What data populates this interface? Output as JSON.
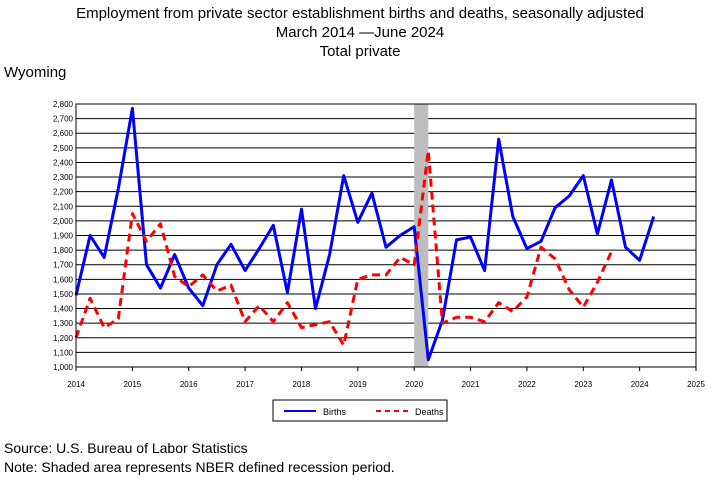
{
  "header": {
    "title": "Employment from private sector establishment births and deaths, seasonally adjusted",
    "period": "March 2014 —June 2024",
    "series_group": "Total private"
  },
  "region": "Wyoming",
  "footer": {
    "source": "Source: U.S. Bureau of Labor Statistics",
    "note": "Note: Shaded area represents NBER defined recession period."
  },
  "chart_data": {
    "type": "line",
    "xlim": [
      2014,
      2025
    ],
    "ylim": [
      1000,
      2800
    ],
    "xticks": [
      "2014",
      "2015",
      "2016",
      "2017",
      "2018",
      "2019",
      "2020",
      "2021",
      "2022",
      "2023",
      "2024",
      "2025"
    ],
    "yticks": [
      "1,000",
      "1,100",
      "1,200",
      "1,300",
      "1,400",
      "1,500",
      "1,600",
      "1,700",
      "1,800",
      "1,900",
      "2,000",
      "2,100",
      "2,200",
      "2,300",
      "2,400",
      "2,500",
      "2,600",
      "2,700",
      "2,800"
    ],
    "grid": "horizontal",
    "legend_position": "bottom",
    "recession": [
      2020.0,
      2020.25
    ],
    "recession_color": "#bdbdbd",
    "series": [
      {
        "name": "Births",
        "color": "#0000ff",
        "style": "solid",
        "x": [
          2014.0,
          2014.25,
          2014.5,
          2014.75,
          2015.0,
          2015.25,
          2015.5,
          2015.75,
          2016.0,
          2016.25,
          2016.5,
          2016.75,
          2017.0,
          2017.25,
          2017.5,
          2017.75,
          2018.0,
          2018.25,
          2018.5,
          2018.75,
          2019.0,
          2019.25,
          2019.5,
          2019.75,
          2020.0,
          2020.25,
          2020.5,
          2020.75,
          2021.0,
          2021.25,
          2021.5,
          2021.75,
          2022.0,
          2022.25,
          2022.5,
          2022.75,
          2023.0,
          2023.25,
          2023.5,
          2023.75,
          2024.0,
          2024.25
        ],
        "y": [
          1490,
          1900,
          1750,
          2220,
          2770,
          1700,
          1540,
          1770,
          1540,
          1420,
          1700,
          1840,
          1660,
          1810,
          1970,
          1510,
          2080,
          1400,
          1770,
          2310,
          1990,
          2190,
          1820,
          1900,
          1960,
          1050,
          1320,
          1870,
          1890,
          1660,
          2560,
          2030,
          1810,
          1860,
          2090,
          2170,
          2310,
          1910,
          2280,
          1820,
          1730,
          2030
        ]
      },
      {
        "name": "Deaths",
        "color": "#ff0000",
        "style": "dashed",
        "x": [
          2014.0,
          2014.25,
          2014.5,
          2014.75,
          2015.0,
          2015.25,
          2015.5,
          2015.75,
          2016.0,
          2016.25,
          2016.5,
          2016.75,
          2017.0,
          2017.25,
          2017.5,
          2017.75,
          2018.0,
          2018.25,
          2018.5,
          2018.75,
          2019.0,
          2019.25,
          2019.5,
          2019.75,
          2020.0,
          2020.25,
          2020.5,
          2020.75,
          2021.0,
          2021.25,
          2021.5,
          2021.75,
          2022.0,
          2022.25,
          2022.5,
          2022.75,
          2023.0,
          2023.25,
          2023.5
        ],
        "y": [
          1200,
          1470,
          1270,
          1330,
          2050,
          1860,
          1980,
          1620,
          1550,
          1630,
          1520,
          1560,
          1310,
          1420,
          1310,
          1440,
          1270,
          1290,
          1310,
          1150,
          1600,
          1630,
          1630,
          1750,
          1700,
          2480,
          1300,
          1340,
          1340,
          1310,
          1440,
          1380,
          1480,
          1820,
          1740,
          1530,
          1410,
          1580,
          1790
        ]
      }
    ]
  }
}
